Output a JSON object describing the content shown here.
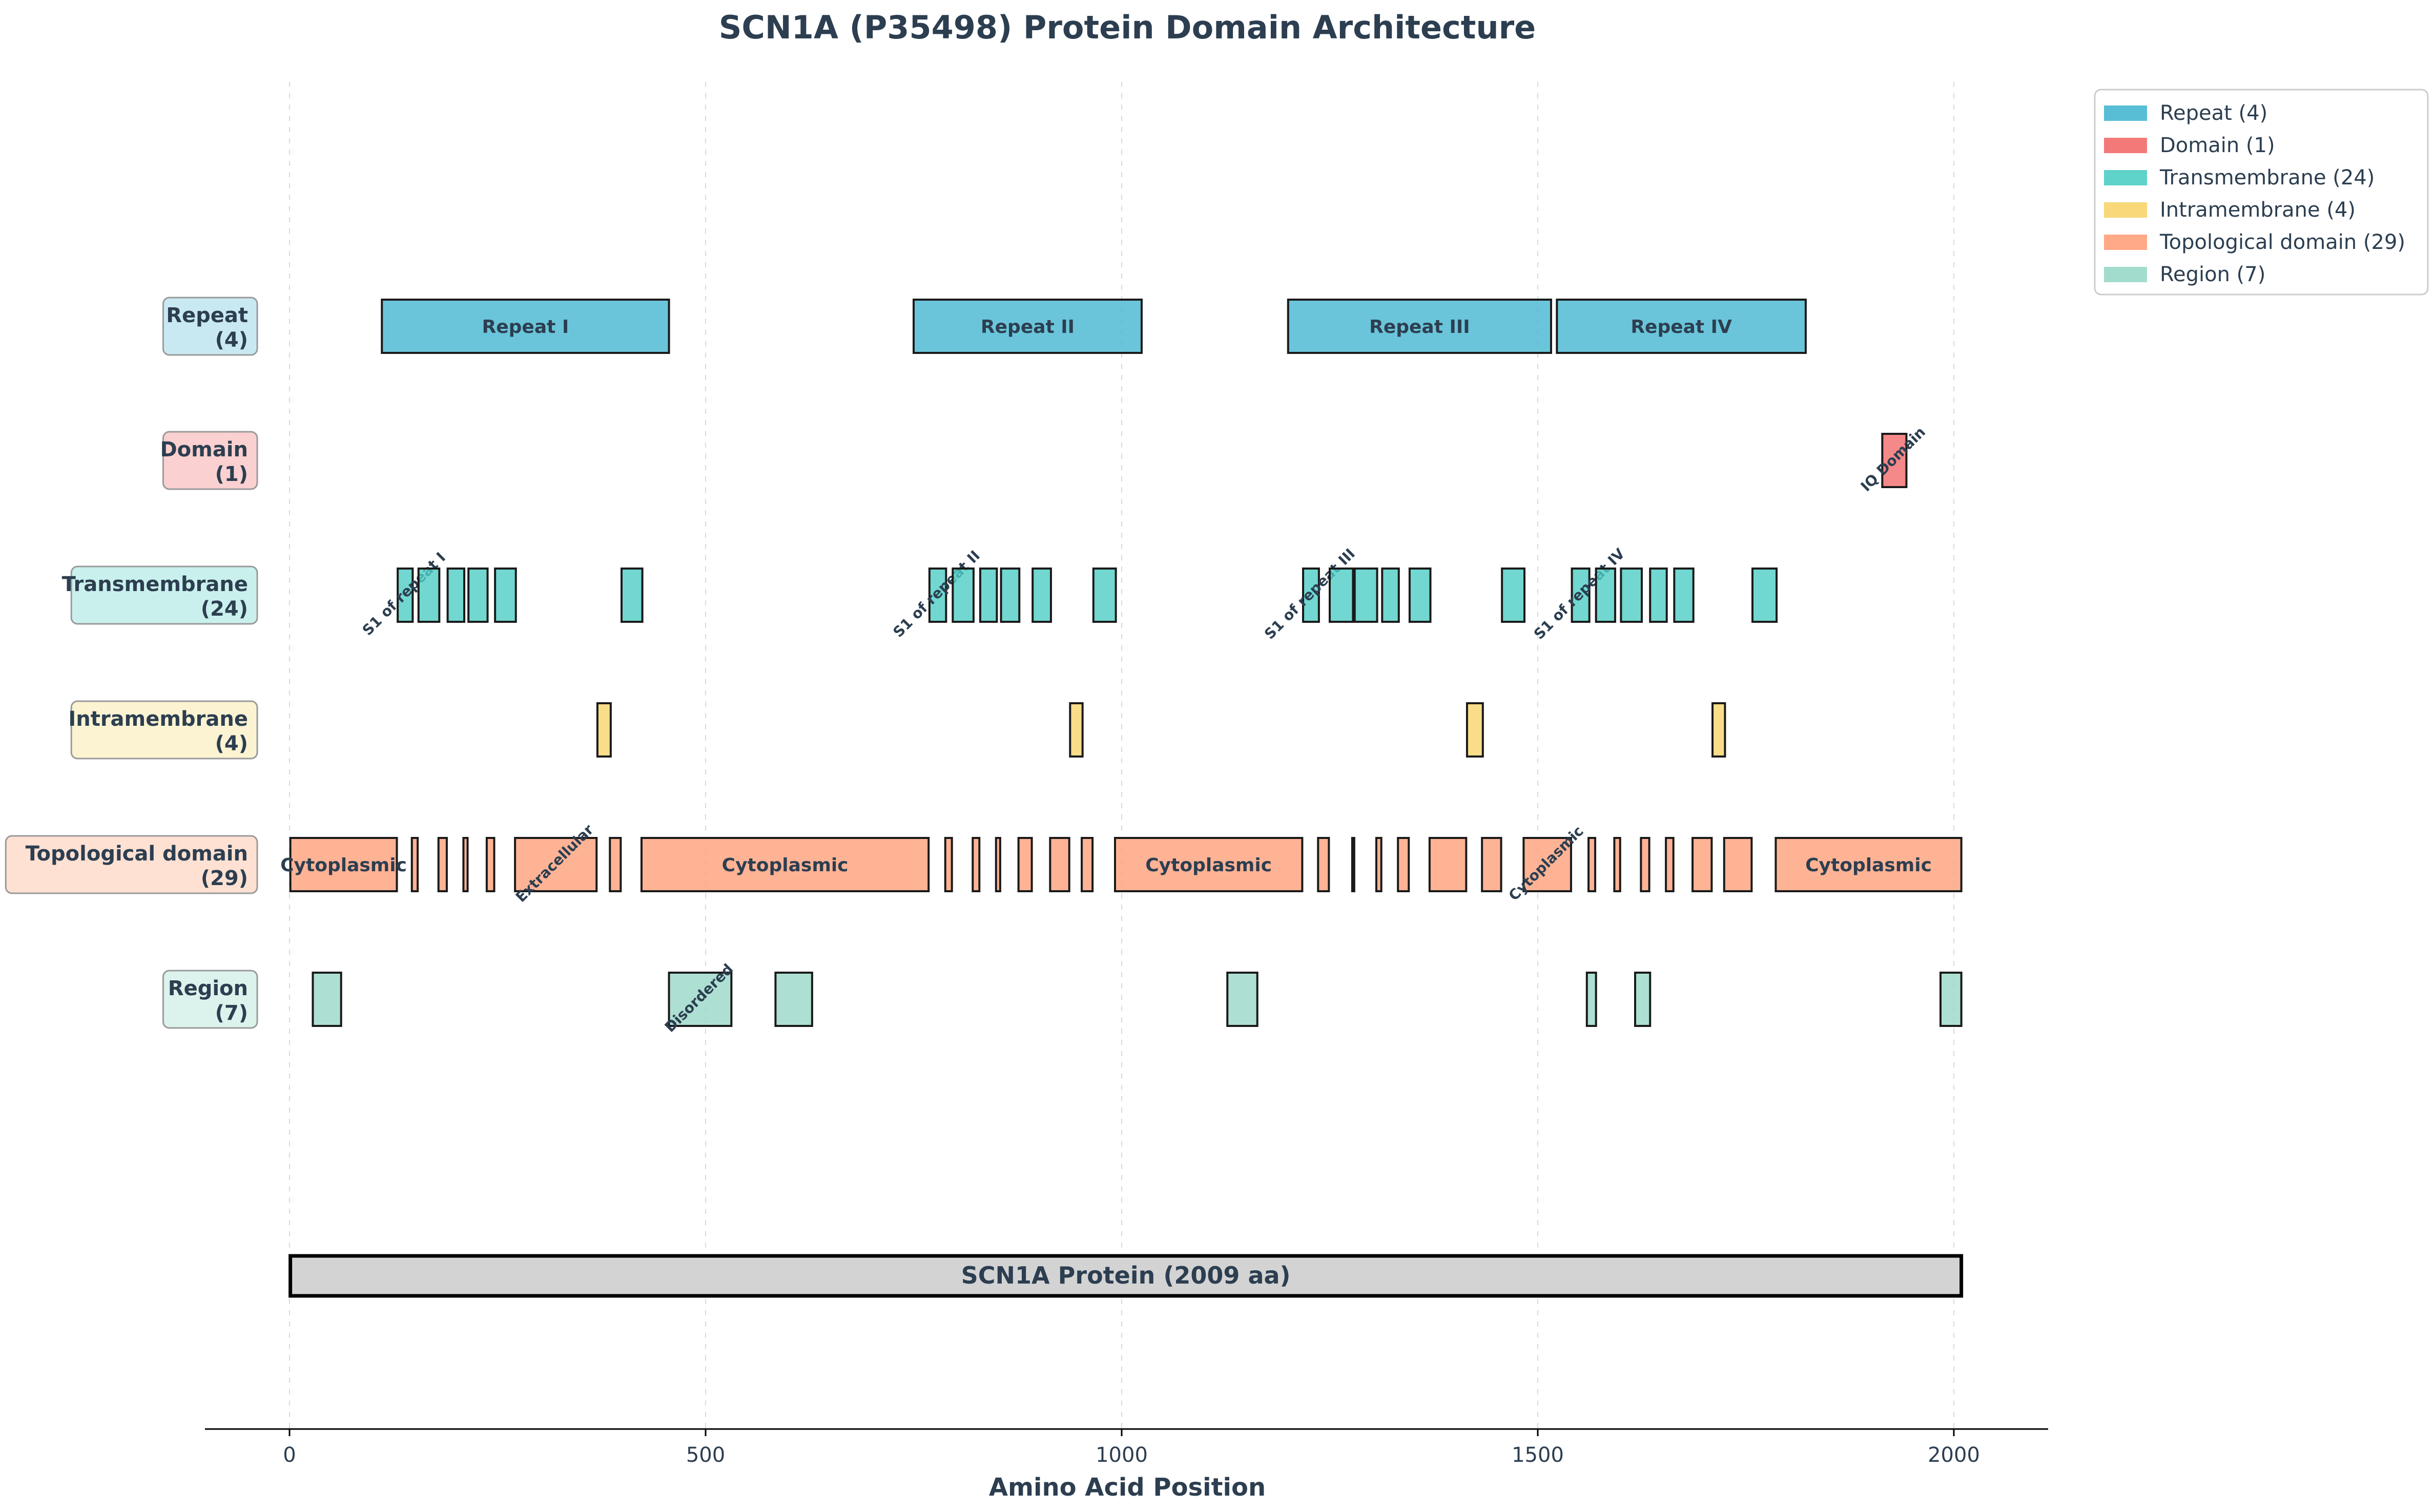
{
  "chart_data": {
    "type": "domain-architecture",
    "title": "SCN1A (P35498) Protein Domain Architecture",
    "xlabel": "Amino Acid Position",
    "xlim": [
      -100,
      2110
    ],
    "xticks": [
      0,
      500,
      1000,
      1500,
      2000
    ],
    "grid": "vertical-dashed",
    "legend_position": "upper-right-outside",
    "protein": {
      "label": "SCN1A Protein (2009 aa)",
      "start": 1,
      "end": 2009
    },
    "tracks": [
      {
        "name": "Repeat",
        "count": 4,
        "legend": "Repeat (4)",
        "label_line1": "Repeat",
        "label_line2": "(4)",
        "color": "#45b7d1",
        "label_bg": "#c9e9f2",
        "features": [
          {
            "start": 111,
            "end": 456,
            "label": "Repeat I",
            "orient": "h"
          },
          {
            "start": 750,
            "end": 1024,
            "label": "Repeat II",
            "orient": "h"
          },
          {
            "start": 1200,
            "end": 1516,
            "label": "Repeat III",
            "orient": "h"
          },
          {
            "start": 1523,
            "end": 1822,
            "label": "Repeat IV",
            "orient": "h"
          }
        ]
      },
      {
        "name": "Domain",
        "count": 1,
        "legend": "Domain (1)",
        "label_line1": "Domain",
        "label_line2": "(1)",
        "color": "#f26a6a",
        "label_bg": "#fbd0d0",
        "features": [
          {
            "start": 1914,
            "end": 1943,
            "label": "IQ Domain",
            "orient": "r"
          }
        ]
      },
      {
        "name": "Transmembrane",
        "count": 24,
        "legend": "Transmembrane (24)",
        "label_line1": "Transmembrane",
        "label_line2": "(24)",
        "color": "#4ecdc4",
        "label_bg": "#c9f0ed",
        "features": [
          {
            "start": 130,
            "end": 148,
            "label": "S1 of repeat I",
            "orient": "r"
          },
          {
            "start": 155,
            "end": 180
          },
          {
            "start": 190,
            "end": 210
          },
          {
            "start": 215,
            "end": 238
          },
          {
            "start": 247,
            "end": 272
          },
          {
            "start": 399,
            "end": 424
          },
          {
            "start": 769,
            "end": 789,
            "label": "S1 of repeat II",
            "orient": "r"
          },
          {
            "start": 797,
            "end": 822
          },
          {
            "start": 830,
            "end": 850
          },
          {
            "start": 855,
            "end": 877
          },
          {
            "start": 893,
            "end": 915
          },
          {
            "start": 966,
            "end": 993
          },
          {
            "start": 1218,
            "end": 1237,
            "label": "S1 of repeat III",
            "orient": "r"
          },
          {
            "start": 1250,
            "end": 1278
          },
          {
            "start": 1280,
            "end": 1307
          },
          {
            "start": 1313,
            "end": 1333
          },
          {
            "start": 1346,
            "end": 1371
          },
          {
            "start": 1457,
            "end": 1484
          },
          {
            "start": 1541,
            "end": 1562,
            "label": "S1 of repeat IV",
            "orient": "r"
          },
          {
            "start": 1570,
            "end": 1593
          },
          {
            "start": 1600,
            "end": 1625
          },
          {
            "start": 1635,
            "end": 1655
          },
          {
            "start": 1664,
            "end": 1687
          },
          {
            "start": 1758,
            "end": 1787
          }
        ]
      },
      {
        "name": "Intramembrane",
        "count": 4,
        "legend": "Intramembrane (4)",
        "label_line1": "Intramembrane",
        "label_line2": "(4)",
        "color": "#f7d46a",
        "label_bg": "#fcf3d2",
        "features": [
          {
            "start": 370,
            "end": 386
          },
          {
            "start": 938,
            "end": 953
          },
          {
            "start": 1415,
            "end": 1434
          },
          {
            "start": 1710,
            "end": 1725
          }
        ]
      },
      {
        "name": "Topological domain",
        "count": 29,
        "legend": "Topological domain (29)",
        "label_line1": "Topological domain",
        "label_line2": "(29)",
        "color": "#ffa07a",
        "label_bg": "#ffe1d3",
        "features": [
          {
            "start": 1,
            "end": 129,
            "label": "Cytoplasmic",
            "orient": "h"
          },
          {
            "start": 147,
            "end": 154
          },
          {
            "start": 179,
            "end": 189
          },
          {
            "start": 209,
            "end": 214
          },
          {
            "start": 237,
            "end": 246
          },
          {
            "start": 271,
            "end": 369,
            "label": "Extracellular",
            "orient": "r"
          },
          {
            "start": 385,
            "end": 398
          },
          {
            "start": 423,
            "end": 768,
            "label": "Cytoplasmic",
            "orient": "h"
          },
          {
            "start": 788,
            "end": 796
          },
          {
            "start": 821,
            "end": 829
          },
          {
            "start": 849,
            "end": 854
          },
          {
            "start": 876,
            "end": 892
          },
          {
            "start": 914,
            "end": 937
          },
          {
            "start": 952,
            "end": 965
          },
          {
            "start": 992,
            "end": 1217,
            "label": "Cytoplasmic",
            "orient": "h"
          },
          {
            "start": 1236,
            "end": 1249
          },
          {
            "start": 1277,
            "end": 1279
          },
          {
            "start": 1306,
            "end": 1312
          },
          {
            "start": 1332,
            "end": 1345
          },
          {
            "start": 1370,
            "end": 1414
          },
          {
            "start": 1433,
            "end": 1456
          },
          {
            "start": 1483,
            "end": 1540,
            "label": "Cytoplasmic",
            "orient": "r"
          },
          {
            "start": 1561,
            "end": 1569
          },
          {
            "start": 1592,
            "end": 1599
          },
          {
            "start": 1624,
            "end": 1634
          },
          {
            "start": 1654,
            "end": 1663
          },
          {
            "start": 1686,
            "end": 1709
          },
          {
            "start": 1724,
            "end": 1757
          },
          {
            "start": 1786,
            "end": 2009,
            "label": "Cytoplasmic",
            "orient": "h"
          }
        ]
      },
      {
        "name": "Region",
        "count": 7,
        "legend": "Region (7)",
        "label_line1": "Region",
        "label_line2": "(7)",
        "color": "#98d8c8",
        "label_bg": "#dcf2ec",
        "features": [
          {
            "start": 28,
            "end": 62
          },
          {
            "start": 456,
            "end": 531,
            "label": "Disordered",
            "orient": "r"
          },
          {
            "start": 584,
            "end": 628
          },
          {
            "start": 1127,
            "end": 1163
          },
          {
            "start": 1559,
            "end": 1570
          },
          {
            "start": 1617,
            "end": 1635
          },
          {
            "start": 1984,
            "end": 2009
          }
        ]
      }
    ]
  }
}
